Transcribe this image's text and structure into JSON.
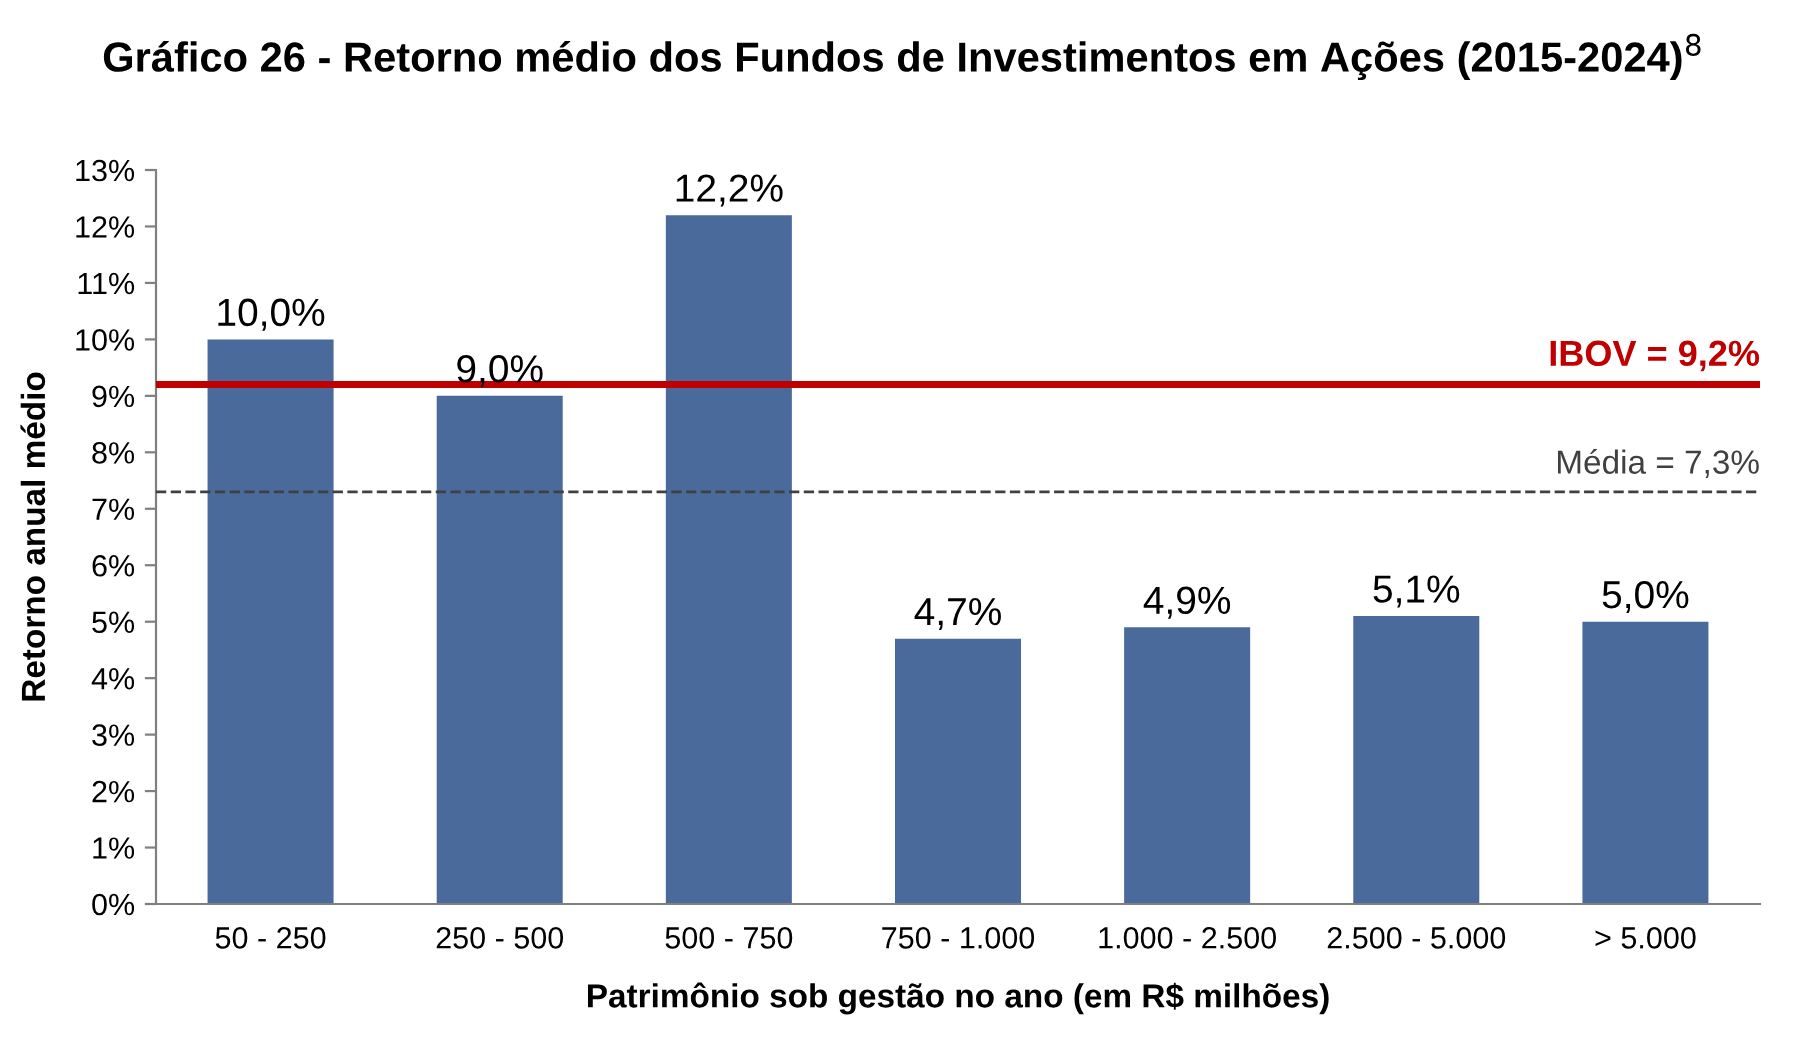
{
  "chart_data": {
    "type": "bar",
    "title": "Gráfico 26 - Retorno médio dos Fundos de Investimentos em Ações (2015-2024)$^{8}$",
    "xlabel": "Patrimônio sob gestão no ano (em R$ milhões)",
    "ylabel": "Retorno anual médio",
    "categories": [
      "50 - 250",
      "250 - 500",
      "500 - 750",
      "750 - 1.000",
      "1.000 - 2.500",
      "2.500 - 5.000",
      "> 5.000"
    ],
    "values": [
      10.0,
      9.0,
      12.2,
      4.7,
      4.9,
      5.1,
      5.0
    ],
    "value_labels": [
      "10,0%",
      "9,0%",
      "12,2%",
      "4,7%",
      "4,9%",
      "5,1%",
      "5,0%"
    ],
    "color": "#4a6a9b",
    "ylim": [
      0,
      13
    ],
    "yticks": [
      {
        "value": 0,
        "label": "0%"
      },
      {
        "value": 1,
        "label": "1%"
      },
      {
        "value": 2,
        "label": "2%"
      },
      {
        "value": 3,
        "label": "3%"
      },
      {
        "value": 4,
        "label": "4%"
      },
      {
        "value": 5,
        "label": "5%"
      },
      {
        "value": 6,
        "label": "6%"
      },
      {
        "value": 7,
        "label": "7%"
      },
      {
        "value": 8,
        "label": "8%"
      },
      {
        "value": 9,
        "label": "9%"
      },
      {
        "value": 10,
        "label": "10%"
      },
      {
        "value": 11,
        "label": "11%"
      },
      {
        "value": 12,
        "label": "12%"
      },
      {
        "value": 13,
        "label": "13%"
      }
    ],
    "ref_lines": [
      {
        "axis": "y",
        "value": 9.2,
        "label": "IBOV = 9,2%",
        "color": "#c00000",
        "line_style": "solid"
      },
      {
        "axis": "y",
        "value": 7.3,
        "label": "Média = 7,3%",
        "color": "#404040",
        "line_style": "dashed"
      }
    ],
    "grid": false,
    "legend": false
  }
}
